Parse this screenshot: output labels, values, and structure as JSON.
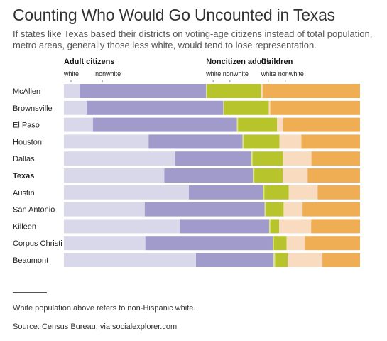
{
  "title": "Counting Who Would Go Uncounted in Texas",
  "subtitle": "If states like Texas based their districts on voting-age citizens instead of total population, metro areas, generally those less white, would tend to lose representation.",
  "note": "White population above refers to non-Hispanic white.",
  "source": "Source: Census Bureau, via socialexplorer.com",
  "colors": {
    "adult_white": "#d9d8ea",
    "adult_nonwhite": "#a09bcb",
    "noncit_white": "#dce48a",
    "noncit_nonwhite": "#b8c42c",
    "child_white": "#f9dcc0",
    "child_nonwhite": "#efae53"
  },
  "chart_data": {
    "type": "bar",
    "stacked": true,
    "orientation": "horizontal",
    "normalized_to": 100,
    "groups": [
      {
        "name": "Adult citizens",
        "subs": [
          "white",
          "nonwhite"
        ]
      },
      {
        "name": "Noncitizen adults",
        "subs": [
          "white",
          "nonwhite"
        ]
      },
      {
        "name": "Children",
        "subs": [
          "white",
          "nonwhite"
        ]
      }
    ],
    "categories": [
      "McAllen",
      "Brownsville",
      "El Paso",
      "Houston",
      "Dallas",
      "Texas",
      "Austin",
      "San Antonio",
      "Killeen",
      "Corpus Christi",
      "Beaumont"
    ],
    "highlight": "Texas",
    "series": [
      {
        "key": "adult_white",
        "values": [
          5.3,
          7.7,
          9.8,
          28.6,
          37.6,
          33.9,
          42.2,
          27.3,
          39.2,
          27.5,
          44.6
        ]
      },
      {
        "key": "adult_nonwhite",
        "values": [
          42.7,
          46.1,
          48.6,
          31.7,
          25.6,
          29.9,
          25.0,
          40.5,
          30.1,
          43.0,
          26.2
        ]
      },
      {
        "key": "noncit_white",
        "values": [
          0.4,
          0.4,
          0.4,
          0.5,
          0.5,
          0.5,
          0.5,
          0.4,
          0.4,
          0.4,
          0.5
        ]
      },
      {
        "key": "noncit_nonwhite",
        "values": [
          18.2,
          15.0,
          13.2,
          12.0,
          10.3,
          9.6,
          8.2,
          6.0,
          3.0,
          4.3,
          4.3
        ]
      },
      {
        "key": "child_white",
        "values": [
          0.5,
          0.5,
          2.0,
          7.4,
          9.6,
          8.4,
          9.8,
          6.4,
          10.8,
          6.2,
          11.7
        ]
      },
      {
        "key": "child_nonwhite",
        "values": [
          32.9,
          30.3,
          26.0,
          19.8,
          16.4,
          17.7,
          14.3,
          19.4,
          16.5,
          18.6,
          12.7
        ]
      }
    ]
  }
}
